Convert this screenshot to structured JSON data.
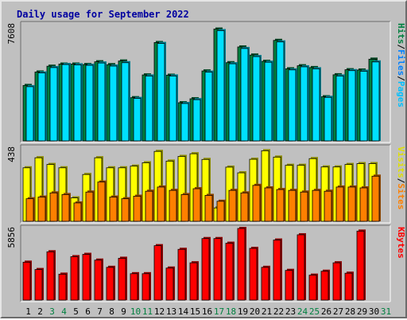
{
  "chart_data": {
    "type": "bar",
    "title": "Daily usage for September 2022",
    "categories": [
      "1",
      "2",
      "3",
      "4",
      "5",
      "6",
      "7",
      "8",
      "9",
      "10",
      "11",
      "12",
      "13",
      "14",
      "15",
      "16",
      "17",
      "18",
      "19",
      "20",
      "21",
      "22",
      "23",
      "24",
      "25",
      "26",
      "27",
      "28",
      "29",
      "30",
      "31"
    ],
    "weekend_days": [
      "3",
      "4",
      "10",
      "11",
      "17",
      "18",
      "24",
      "25",
      "31"
    ],
    "panels": [
      {
        "name": "usage",
        "ymax_label": "7608",
        "ymax": 7608,
        "right_label_parts": [
          {
            "text": "Hits",
            "color": "#008040"
          },
          {
            "text": "/",
            "color": "#000000"
          },
          {
            "text": "Files",
            "color": "#0080ff"
          },
          {
            "text": "/",
            "color": "#000000"
          },
          {
            "text": "Pages",
            "color": "#00c0ff"
          }
        ],
        "series": [
          {
            "name": "Hits",
            "color": "#008040",
            "values": [
              3630,
              4510,
              4890,
              5030,
              5030,
              5000,
              5180,
              4990,
              5230,
              2830,
              4320,
              6440,
              4300,
              2500,
              2760,
              4580,
              7320,
              5120,
              6150,
              5620,
              5210,
              6580,
              4720,
              4920,
              4800,
              2890,
              4330,
              4660,
              4640,
              5350,
              null
            ]
          },
          {
            "name": "Files",
            "color": "#00e0ff",
            "values": [
              3550,
              4450,
              4800,
              5000,
              4980,
              4950,
              5100,
              4900,
              5120,
              2780,
              4250,
              6380,
              4250,
              2450,
              2700,
              4500,
              7220,
              5050,
              6050,
              5520,
              5150,
              6480,
              4650,
              4850,
              4720,
              2850,
              4250,
              4600,
              4560,
              5170,
              null
            ]
          }
        ]
      },
      {
        "name": "visits",
        "ymax_label": "438",
        "ymax": 438,
        "right_label_parts": [
          {
            "text": "Visits",
            "color": "#e0e000"
          },
          {
            "text": "/",
            "color": "#000000"
          },
          {
            "text": "Sites",
            "color": "#ff8000"
          }
        ],
        "series": [
          {
            "name": "Visits",
            "color": "#ffff00",
            "values": [
              320,
              380,
              340,
              320,
              140,
              280,
              380,
              320,
              320,
              330,
              350,
              418,
              360,
              388,
              404,
              370,
              80,
              324,
              290,
              371,
              422,
              384,
              335,
              335,
              375,
              325,
              325,
              340,
              345,
              345,
              null
            ]
          },
          {
            "name": "Sites",
            "color": "#ff8000",
            "values": [
              135,
              145,
              170,
              160,
              110,
              175,
              235,
              145,
              135,
              150,
              180,
              205,
              185,
              160,
              195,
              155,
              120,
              185,
              170,
              215,
              200,
              190,
              185,
              175,
              185,
              180,
              205,
              205,
              200,
              270,
              null
            ]
          }
        ]
      },
      {
        "name": "kbytes",
        "ymax_label": "5856",
        "ymax": 5856,
        "right_label_parts": [
          {
            "text": "KBytes",
            "color": "#ff0000"
          }
        ],
        "series": [
          {
            "name": "KBytes",
            "color": "#ff0000",
            "values": [
              3100,
              2500,
              3950,
              2120,
              3550,
              3740,
              3270,
              2680,
              3420,
              2160,
              2160,
              4450,
              2620,
              4150,
              3050,
              5030,
              5030,
              4650,
              5856,
              4230,
              2680,
              4910,
              2430,
              5340,
              2040,
              2360,
              3050,
              2200,
              5640,
              null,
              null
            ]
          }
        ]
      }
    ]
  }
}
